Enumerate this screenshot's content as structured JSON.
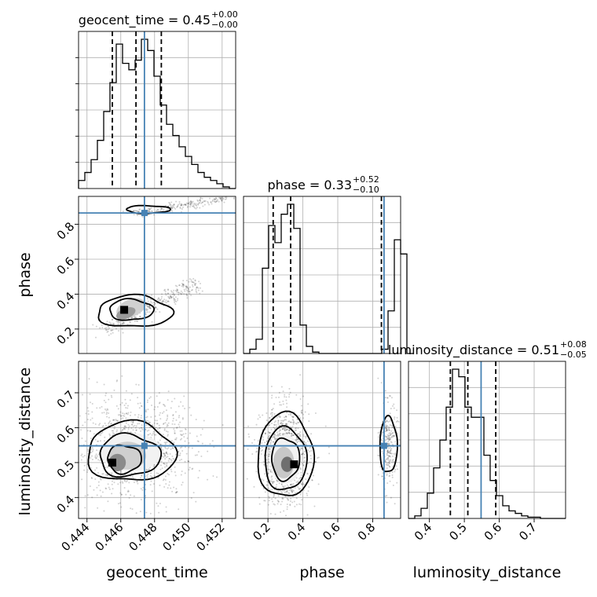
{
  "colors": {
    "truth": "#4682b4",
    "contour": "#000000",
    "grid": "#b0b0b0"
  },
  "titles": {
    "geocent_time": {
      "main": "geocent_time = 0.45",
      "sup": "+0.00",
      "sub": "−0.00"
    },
    "phase": {
      "main": "phase = 0.33",
      "sup": "+0.52",
      "sub": "−0.10"
    },
    "luminosity_distance": {
      "main": "luminosity_distance = 0.51",
      "sup": "+0.08",
      "sub": "−0.05"
    }
  },
  "labels": {
    "x_geocent_time": "geocent_time",
    "x_phase": "phase",
    "x_luminosity_distance": "luminosity_distance",
    "y_phase": "phase",
    "y_luminosity_distance": "luminosity_distance"
  },
  "chart_data": {
    "type": "corner",
    "parameters": [
      "geocent_time",
      "phase",
      "luminosity_distance"
    ],
    "truths": {
      "geocent_time": 0.4474,
      "phase": 0.865,
      "luminosity_distance": 0.548
    },
    "ranges": {
      "geocent_time": [
        0.4435,
        0.4528
      ],
      "phase": [
        0.06,
        0.96
      ],
      "luminosity_distance": [
        0.34,
        0.79
      ]
    },
    "ticks": {
      "geocent_time": [
        "0.444",
        "0.446",
        "0.448",
        "0.450",
        "0.452"
      ],
      "phase": [
        "0.2",
        "0.4",
        "0.6",
        "0.8"
      ],
      "luminosity_distance": [
        "0.4",
        "0.5",
        "0.6",
        "0.7"
      ]
    },
    "quantiles": {
      "geocent_time": [
        0.4455,
        0.4469,
        0.4484
      ],
      "phase": [
        0.23,
        0.33,
        0.85
      ],
      "luminosity_distance": [
        0.46,
        0.51,
        0.59
      ]
    },
    "histograms": {
      "geocent_time": {
        "edges_start": 0.4435,
        "bin_width": 0.000372,
        "counts": [
          5,
          10,
          18,
          30,
          48,
          66,
          90,
          78,
          74,
          80,
          93,
          86,
          70,
          52,
          40,
          33,
          26,
          20,
          15,
          10,
          7,
          5,
          3,
          1,
          0
        ]
      },
      "phase": {
        "edges_start": 0.06,
        "bin_width": 0.036,
        "counts": [
          0,
          3,
          10,
          60,
          90,
          78,
          98,
          105,
          88,
          20,
          5,
          1,
          0,
          0,
          0,
          0,
          0,
          0,
          0,
          0,
          0,
          0,
          3,
          30,
          80,
          70,
          0
        ]
      },
      "luminosity_distance": {
        "edges_start": 0.34,
        "bin_width": 0.018,
        "counts": [
          0,
          2,
          8,
          20,
          40,
          62,
          88,
          118,
          112,
          88,
          80,
          80,
          50,
          30,
          18,
          10,
          6,
          4,
          2,
          1,
          1,
          0,
          0,
          0,
          0
        ]
      }
    },
    "contours_2d": {
      "phase_vs_geocent_time": "two elongated correlated modes (upper ~0.88, lower ~0.2-0.45)",
      "luminosity_distance_vs_geocent_time": "single mode near (0.446, 0.50)",
      "luminosity_distance_vs_phase": "main mode near (0.3, 0.5), secondary near (0.88, 0.58)"
    }
  }
}
